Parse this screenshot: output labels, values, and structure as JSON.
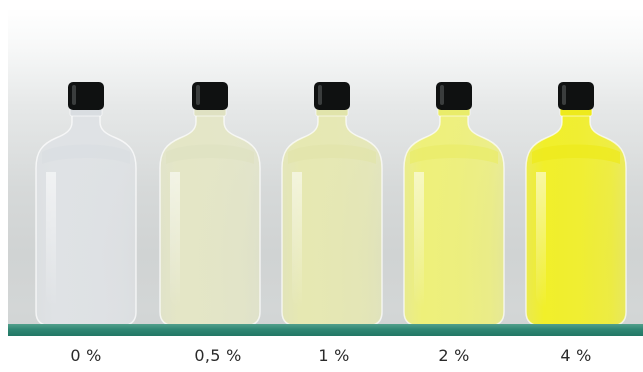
{
  "bottles": [
    {
      "label": "0 %",
      "concentration_percent": 0,
      "liquid_color": "#dfe2e5",
      "body_color": "#d9dde1"
    },
    {
      "label": "0,5 %",
      "concentration_percent": 0.5,
      "liquid_color": "#e4e6c6",
      "body_color": "#dfe1c2"
    },
    {
      "label": "1 %",
      "concentration_percent": 1,
      "liquid_color": "#e6e8b2",
      "body_color": "#e1e4ab"
    },
    {
      "label": "2 %",
      "concentration_percent": 2,
      "liquid_color": "#eef07a",
      "body_color": "#e9ec6a"
    },
    {
      "label": "4 %",
      "concentration_percent": 4,
      "liquid_color": "#f1ef2a",
      "body_color": "#eeea1c"
    }
  ],
  "colors": {
    "cap": "#0f1111",
    "shelf": "#2f8673",
    "background": "#d6d9d9"
  }
}
